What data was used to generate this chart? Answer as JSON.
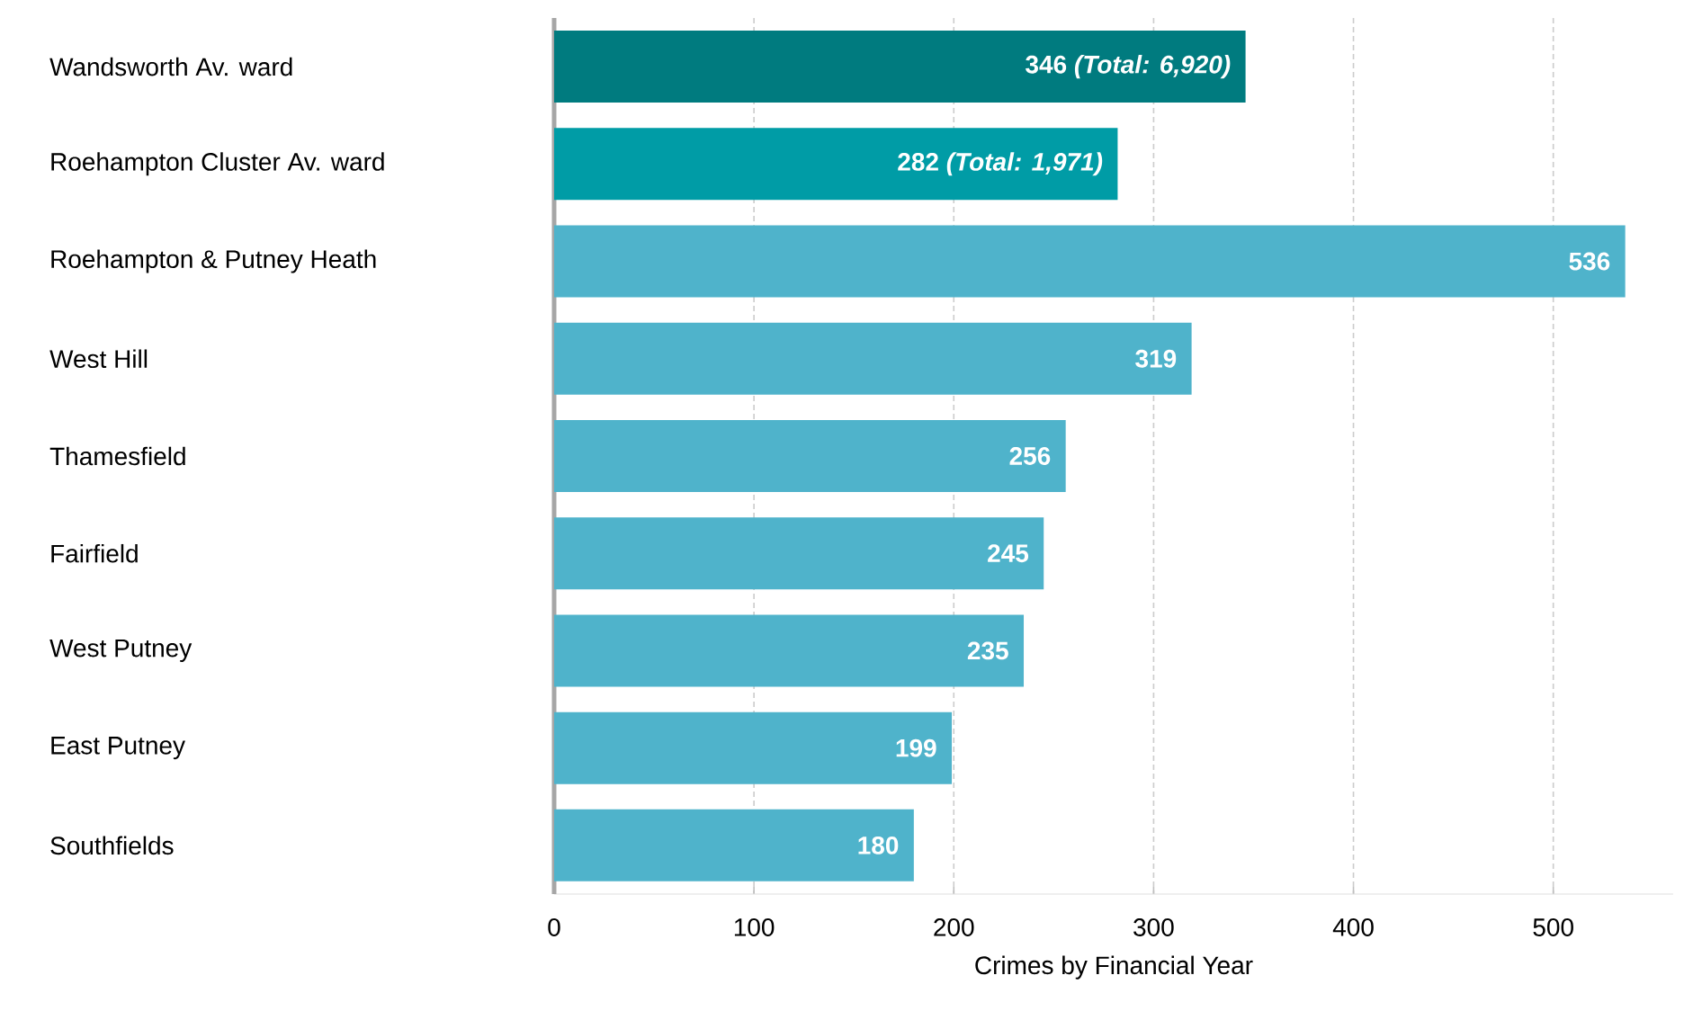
{
  "chart_data": {
    "type": "bar",
    "orientation": "horizontal",
    "xlabel": "Crimes by Financial Year",
    "categories": [
      "Wandsworth Av. ward",
      "Roehampton Cluster Av. ward",
      "Roehampton & Putney Heath",
      "West Hill",
      "Thamesfield",
      "Fairfield",
      "West Putney",
      "East Putney",
      "Southfields"
    ],
    "values": [
      346,
      282,
      536,
      319,
      256,
      245,
      235,
      199,
      180
    ],
    "colors": [
      "#007b7f",
      "#009ca6",
      "#4fb3cb",
      "#4fb3cb",
      "#4fb3cb",
      "#4fb3cb",
      "#4fb3cb",
      "#4fb3cb",
      "#4fb3cb"
    ],
    "value_labels": [
      "346 *(Total: 6,920)*",
      "282 *(Total: 1,971)*",
      "536",
      "319",
      "256",
      "245",
      "235",
      "199",
      "180"
    ],
    "xlim": [
      0,
      560
    ],
    "xticks": [
      0,
      100,
      200,
      300,
      400,
      500
    ],
    "grid": "x"
  }
}
